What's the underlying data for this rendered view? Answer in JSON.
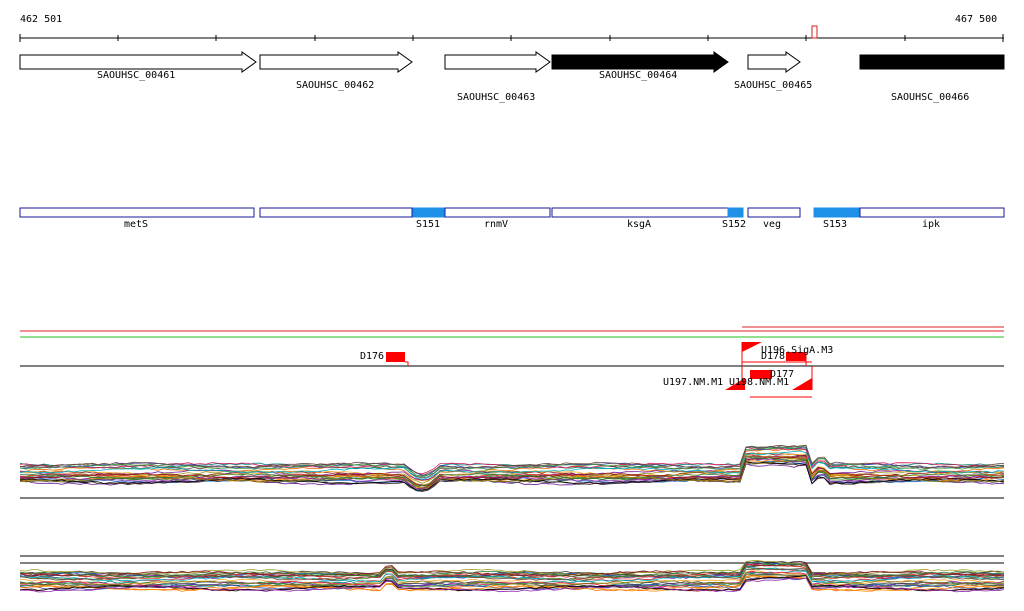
{
  "ruler": {
    "start_label": "462 501",
    "end_label": "467 500"
  },
  "genes": [
    {
      "id": "SAOUHSC_00461",
      "filled": false
    },
    {
      "id": "SAOUHSC_00462",
      "filled": false
    },
    {
      "id": "SAOUHSC_00463",
      "filled": false
    },
    {
      "id": "SAOUHSC_00464",
      "filled": true
    },
    {
      "id": "SAOUHSC_00465",
      "filled": false
    },
    {
      "id": "SAOUHSC_00466",
      "filled": true
    }
  ],
  "annotations": [
    {
      "label": "metS",
      "kind": "gene"
    },
    {
      "label": "",
      "kind": "gene"
    },
    {
      "label": "S151",
      "kind": "srna"
    },
    {
      "label": "rnmV",
      "kind": "gene"
    },
    {
      "label": "ksgA",
      "kind": "gene"
    },
    {
      "label": "S152",
      "kind": "srna"
    },
    {
      "label": "veg",
      "kind": "gene"
    },
    {
      "label": "S153",
      "kind": "srna"
    },
    {
      "label": "ipk",
      "kind": "gene"
    }
  ],
  "features": [
    {
      "label": "D176"
    },
    {
      "label": "U196.SigA.M3"
    },
    {
      "label": "D178"
    },
    {
      "label": "D177"
    },
    {
      "label": "U197.NM.M1"
    },
    {
      "label": "U198.NM.M1"
    }
  ],
  "colors": {
    "srna": "#1e90e8",
    "gene_box": "#1a1a99",
    "feature": "#ff0000",
    "track_red": "#e02020",
    "track_green": "#20c020"
  }
}
